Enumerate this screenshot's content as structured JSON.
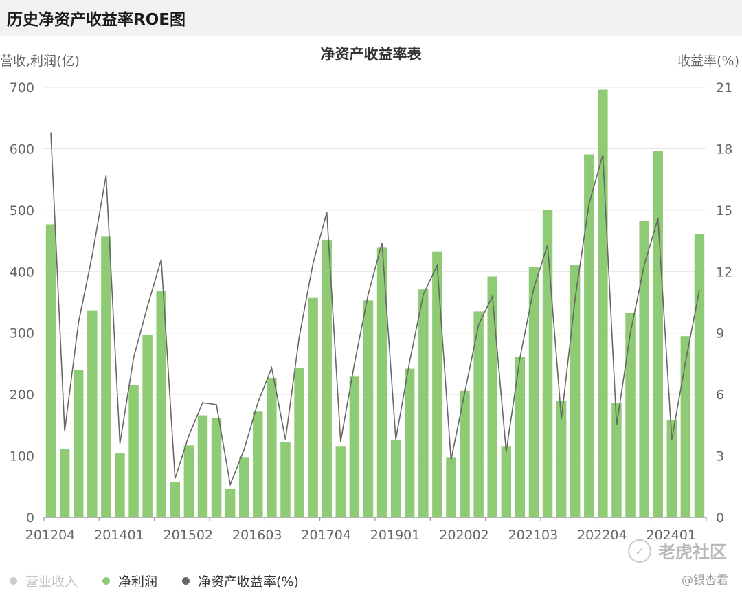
{
  "header": {
    "title": "历史净资产收益率ROE图"
  },
  "chart_data": {
    "type": "bar",
    "title": "净资产收益率表",
    "ylabel_left": "营收,利润(亿)",
    "ylabel_right": "收益率(%)",
    "ylim_left": [
      0,
      700
    ],
    "ylim_right": [
      0,
      21
    ],
    "yticks_left": [
      "0",
      "100",
      "200",
      "300",
      "400",
      "500",
      "600",
      "700"
    ],
    "yticks_right": [
      "0",
      "3",
      "6",
      "9",
      "12",
      "15",
      "18",
      "21"
    ],
    "xtick_labels": [
      "201204",
      "201401",
      "201502",
      "201603",
      "201704",
      "201901",
      "202002",
      "202103",
      "202204",
      "202401"
    ],
    "grid": true,
    "legend_position": "bottom-left",
    "series": [
      {
        "name": "营业收入",
        "type": "bar",
        "color": "#cccccc",
        "values": []
      },
      {
        "name": "净利润",
        "type": "bar",
        "color": "#8fcb74",
        "values": [
          477,
          111,
          240,
          337,
          457,
          104,
          215,
          297,
          369,
          57,
          117,
          166,
          161,
          46,
          98,
          173,
          227,
          122,
          243,
          357,
          451,
          116,
          230,
          353,
          439,
          126,
          242,
          371,
          432,
          98,
          206,
          335,
          392,
          116,
          261,
          408,
          501,
          189,
          411,
          591,
          696,
          186,
          333,
          483,
          596,
          159,
          295,
          461
        ]
      },
      {
        "name": "净资产收益率(%)",
        "type": "line",
        "color": "#666666",
        "values": [
          18.8,
          4.2,
          9.5,
          12.8,
          16.7,
          3.6,
          7.8,
          10.3,
          12.6,
          1.9,
          4.0,
          5.6,
          5.5,
          1.6,
          3.3,
          5.6,
          7.3,
          3.8,
          8.8,
          12.4,
          14.9,
          3.7,
          7.5,
          10.9,
          13.4,
          3.8,
          7.6,
          10.9,
          12.3,
          2.8,
          6.1,
          9.4,
          10.8,
          3.2,
          7.8,
          11.2,
          13.3,
          4.8,
          10.7,
          15.3,
          17.7,
          4.5,
          9.0,
          12.3,
          14.6,
          3.8,
          7.6,
          11.1
        ]
      }
    ]
  },
  "watermark": {
    "logo": "✓",
    "brand": "老虎社区",
    "user": "@银杏君"
  }
}
